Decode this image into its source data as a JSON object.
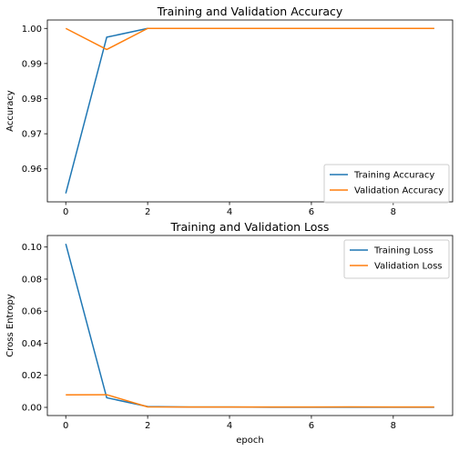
{
  "chart_data": [
    {
      "type": "line",
      "title": "Training and Validation Accuracy",
      "xlabel": "",
      "ylabel": "Accuracy",
      "x": [
        0,
        1,
        2,
        3,
        4,
        5,
        6,
        7,
        8,
        9
      ],
      "xlim": [
        -0.45,
        9.45
      ],
      "ylim": [
        0.9506,
        1.0024
      ],
      "xticks": [
        0,
        2,
        4,
        6,
        8
      ],
      "yticks": [
        0.96,
        0.97,
        0.98,
        0.99,
        1.0
      ],
      "ytick_labels": [
        "0.96",
        "0.97",
        "0.98",
        "0.99",
        "1.00"
      ],
      "legend_loc": "lower right",
      "grid": false,
      "series": [
        {
          "name": "Training Accuracy",
          "color": "#1f77b4",
          "values": [
            0.953,
            0.9975,
            1.0,
            1.0,
            1.0,
            1.0,
            1.0,
            1.0,
            1.0,
            1.0
          ]
        },
        {
          "name": "Validation Accuracy",
          "color": "#ff7f0e",
          "values": [
            1.0,
            0.994,
            1.0,
            1.0,
            1.0,
            1.0,
            1.0,
            1.0,
            1.0,
            1.0
          ]
        }
      ]
    },
    {
      "type": "line",
      "title": "Training and Validation Loss",
      "xlabel": "epoch",
      "ylabel": "Cross Entropy",
      "x": [
        0,
        1,
        2,
        3,
        4,
        5,
        6,
        7,
        8,
        9
      ],
      "xlim": [
        -0.45,
        9.45
      ],
      "ylim": [
        -0.0051,
        0.1072
      ],
      "xticks": [
        0,
        2,
        4,
        6,
        8
      ],
      "yticks": [
        0.0,
        0.02,
        0.04,
        0.06,
        0.08,
        0.1
      ],
      "ytick_labels": [
        "0.00",
        "0.02",
        "0.04",
        "0.06",
        "0.08",
        "0.10"
      ],
      "legend_loc": "upper right",
      "grid": false,
      "series": [
        {
          "name": "Training Loss",
          "color": "#1f77b4",
          "values": [
            0.102,
            0.006,
            0.0005,
            0.0002,
            0.0002,
            0.0001,
            0.0001,
            0.0001,
            0.0001,
            0.0001
          ]
        },
        {
          "name": "Validation Loss",
          "color": "#ff7f0e",
          "values": [
            0.0078,
            0.0079,
            0.0003,
            0.0002,
            0.0002,
            0.0002,
            0.0002,
            0.0003,
            0.0002,
            0.0002
          ]
        }
      ]
    }
  ]
}
